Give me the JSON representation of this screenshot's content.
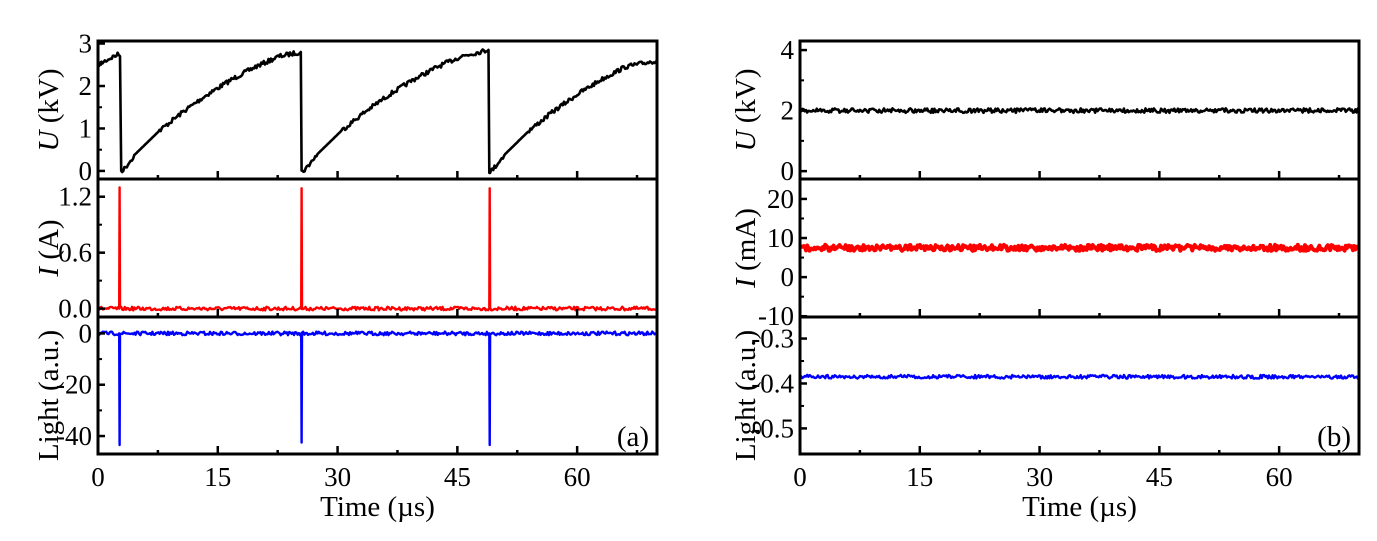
{
  "chart_data": [
    {
      "type": "line",
      "panel_label": "(a)",
      "xlabel": "Time (µs)",
      "xlim": [
        0,
        70
      ],
      "xticks": [
        0,
        15,
        30,
        45,
        60
      ],
      "xtick_labels": [
        "0",
        "15",
        "30",
        "45",
        "60"
      ],
      "subplots": [
        {
          "ylabel_var": "U",
          "ylabel_unit": " (kV)",
          "ylim": [
            -0.19,
            3.06
          ],
          "yticks": [
            0,
            1,
            2,
            3
          ],
          "ytick_labels": [
            "0",
            "1",
            "2",
            "3"
          ],
          "series": {
            "name": "U",
            "color": "#000000",
            "x": [
              0,
              1,
              2,
              2.6,
              2.75,
              2.9,
              3.3,
              4.7,
              7.7,
              10.7,
              13.7,
              16.7,
              19.7,
              22.7,
              25.4,
              25.5,
              25.6,
              26,
              27.5,
              30.5,
              33.5,
              36.5,
              39.5,
              42.5,
              45.5,
              48.9,
              49.0,
              49.1,
              49.5,
              51,
              54,
              57,
              60,
              63,
              66,
              70
            ],
            "y": [
              2.5,
              2.6,
              2.7,
              2.75,
              2.7,
              0.0,
              0.05,
              0.4,
              0.95,
              1.4,
              1.8,
              2.15,
              2.45,
              2.7,
              2.8,
              0.0,
              -0.02,
              0.05,
              0.4,
              0.95,
              1.4,
              1.8,
              2.15,
              2.45,
              2.7,
              2.85,
              0.0,
              -0.02,
              0.05,
              0.4,
              0.95,
              1.4,
              1.8,
              2.15,
              2.45,
              2.6
            ]
          }
        },
        {
          "ylabel_var": "I",
          "ylabel_unit": " (A)",
          "ylim": [
            -0.09,
            1.39
          ],
          "yticks": [
            0,
            0.6,
            1.2
          ],
          "ytick_labels": [
            "0.0",
            "0.6",
            "1.2"
          ],
          "series": {
            "name": "I",
            "color": "#ff0000",
            "x": [
              0,
              2.65,
              2.7,
              2.75,
              25.45,
              25.5,
              25.55,
              49.0,
              49.05,
              49.1,
              70
            ],
            "y": [
              0,
              0,
              1.3,
              0,
              0,
              1.29,
              0,
              0,
              1.29,
              0,
              0
            ]
          }
        },
        {
          "ylabel_var": "",
          "ylabel_unit": "Light (a.u.)",
          "ylim": [
            -47,
            6.4
          ],
          "yticks": [
            0,
            -20,
            -40
          ],
          "ytick_labels": [
            "0",
            "-20",
            "-40"
          ],
          "series": {
            "name": "Light",
            "color": "#0000ff",
            "x": [
              0,
              2.65,
              2.7,
              2.75,
              25.45,
              25.5,
              25.55,
              49.0,
              49.05,
              49.1,
              70
            ],
            "y": [
              0,
              0,
              -43.5,
              0,
              0,
              -42.5,
              0,
              0,
              -43.5,
              0,
              0
            ]
          }
        }
      ]
    },
    {
      "type": "line",
      "panel_label": "(b)",
      "xlabel": "Time (µs)",
      "xlim": [
        0,
        70
      ],
      "xticks": [
        0,
        15,
        30,
        45,
        60
      ],
      "xtick_labels": [
        "0",
        "15",
        "30",
        "45",
        "60"
      ],
      "subplots": [
        {
          "ylabel_var": "U",
          "ylabel_unit": " (kV)",
          "ylim": [
            -0.26,
            4.3
          ],
          "yticks": [
            0,
            2,
            4
          ],
          "ytick_labels": [
            "0",
            "2",
            "4"
          ],
          "series": {
            "name": "U",
            "color": "#000000",
            "x": [
              0,
              70
            ],
            "y": [
              2.0,
              2.0
            ]
          }
        },
        {
          "ylabel_var": "I",
          "ylabel_unit": " (mA)",
          "ylim": [
            -10.2,
            25.1
          ],
          "yticks": [
            -10,
            0,
            10,
            20
          ],
          "ytick_labels": [
            "-10",
            "0",
            "10",
            "20"
          ],
          "series": {
            "name": "I",
            "color": "#ff0000",
            "x": [
              0,
              70
            ],
            "y": [
              7.5,
              7.5
            ]
          }
        },
        {
          "ylabel_var": "",
          "ylabel_unit": "Light (a.u.)",
          "ylim": [
            -0.557,
            -0.252
          ],
          "yticks": [
            -0.3,
            -0.4,
            -0.5
          ],
          "ytick_labels": [
            "-0.3",
            "-0.4",
            "-0.5"
          ],
          "series": {
            "name": "Light",
            "color": "#0000ff",
            "x": [
              0,
              70
            ],
            "y": [
              -0.385,
              -0.385
            ]
          }
        }
      ]
    }
  ]
}
